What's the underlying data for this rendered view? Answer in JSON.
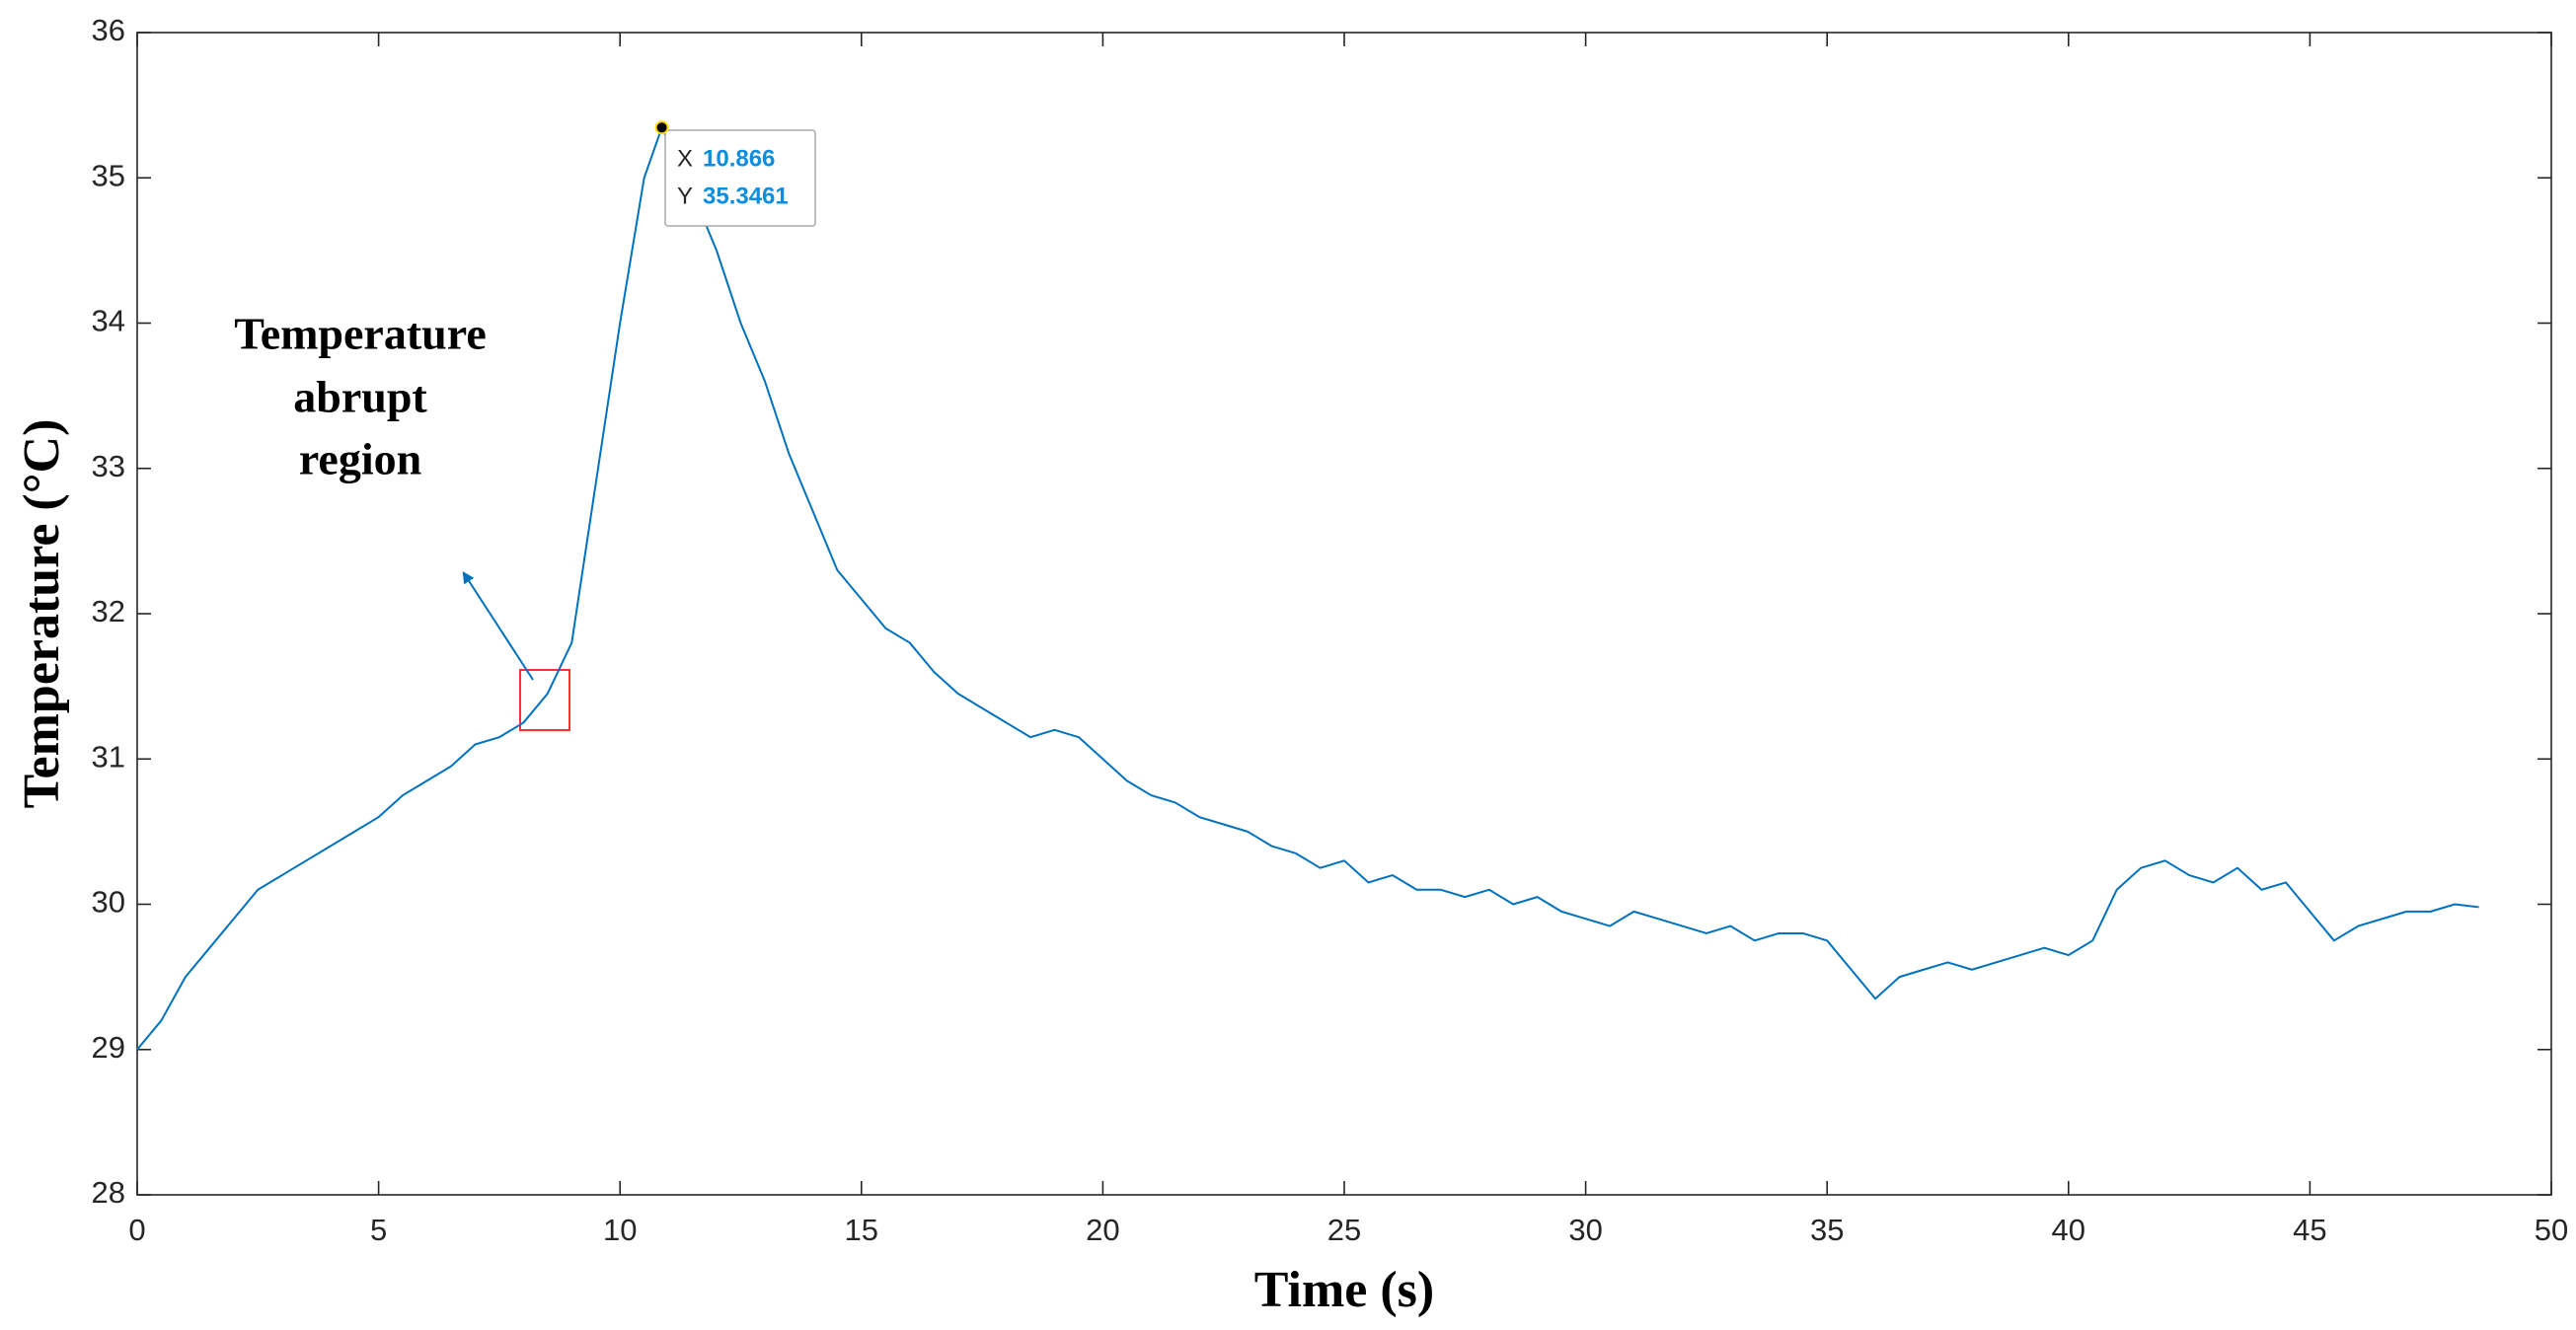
{
  "chart_data": {
    "type": "line",
    "x_label": "Time (s)",
    "y_label": "Temperature (°C)",
    "annotation": [
      "Temperature",
      "abrupt",
      "region"
    ],
    "xlim": [
      0,
      50
    ],
    "xticks": [
      0,
      5,
      10,
      15,
      20,
      25,
      30,
      35,
      40,
      45,
      50
    ],
    "ylim": [
      28,
      36
    ],
    "yticks": [
      28,
      29,
      30,
      31,
      32,
      33,
      34,
      35,
      36
    ],
    "color": "#0072bd",
    "x": [
      0,
      0.5,
      1,
      1.5,
      2,
      2.5,
      3,
      3.5,
      4,
      4.5,
      5,
      5.5,
      6,
      6.5,
      7,
      7.5,
      8,
      8.5,
      9,
      9.5,
      10,
      10.5,
      10.866,
      11.5,
      12,
      12.5,
      13,
      13.5,
      14,
      14.5,
      15,
      15.5,
      16,
      16.5,
      17,
      17.5,
      18,
      18.5,
      19,
      19.5,
      20,
      20.5,
      21,
      21.5,
      22,
      22.5,
      23,
      23.5,
      24,
      24.5,
      25,
      25.5,
      26,
      26.5,
      27,
      27.5,
      28,
      28.5,
      29,
      29.5,
      30,
      30.5,
      31,
      31.5,
      32,
      32.5,
      33,
      33.5,
      34,
      34.5,
      35,
      35.5,
      36,
      36.5,
      37,
      37.5,
      38,
      38.5,
      39,
      39.5,
      40,
      40.5,
      41,
      41.5,
      42,
      42.5,
      43,
      43.5,
      44,
      44.5,
      45,
      45.5,
      46,
      46.5,
      47,
      47.5,
      48,
      48.5
    ],
    "values": [
      29.0,
      29.2,
      29.5,
      29.7,
      29.9,
      30.1,
      30.2,
      30.3,
      30.4,
      30.5,
      30.6,
      30.75,
      30.85,
      30.95,
      31.1,
      31.15,
      31.25,
      31.45,
      31.8,
      32.9,
      34.0,
      35.0,
      35.3461,
      34.9,
      34.5,
      34.0,
      33.6,
      33.1,
      32.7,
      32.3,
      32.1,
      31.9,
      31.8,
      31.6,
      31.45,
      31.35,
      31.25,
      31.15,
      31.2,
      31.15,
      31.0,
      30.85,
      30.75,
      30.7,
      30.6,
      30.55,
      30.5,
      30.4,
      30.35,
      30.25,
      30.3,
      30.15,
      30.2,
      30.1,
      30.1,
      30.05,
      30.1,
      30.0,
      30.05,
      29.95,
      29.9,
      29.85,
      29.95,
      29.9,
      29.85,
      29.8,
      29.85,
      29.75,
      29.8,
      29.8,
      29.75,
      29.55,
      29.35,
      29.5,
      29.55,
      29.6,
      29.55,
      29.6,
      29.65,
      29.7,
      29.65,
      29.75,
      30.1,
      30.25,
      30.3,
      30.2,
      30.15,
      30.25,
      30.1,
      30.15,
      29.95,
      29.75,
      29.85,
      29.9,
      29.95,
      29.95,
      30.0,
      29.98
    ],
    "datatip": {
      "x_name": "X",
      "y_name": "Y",
      "x": 10.866,
      "y": 35.3461
    }
  }
}
